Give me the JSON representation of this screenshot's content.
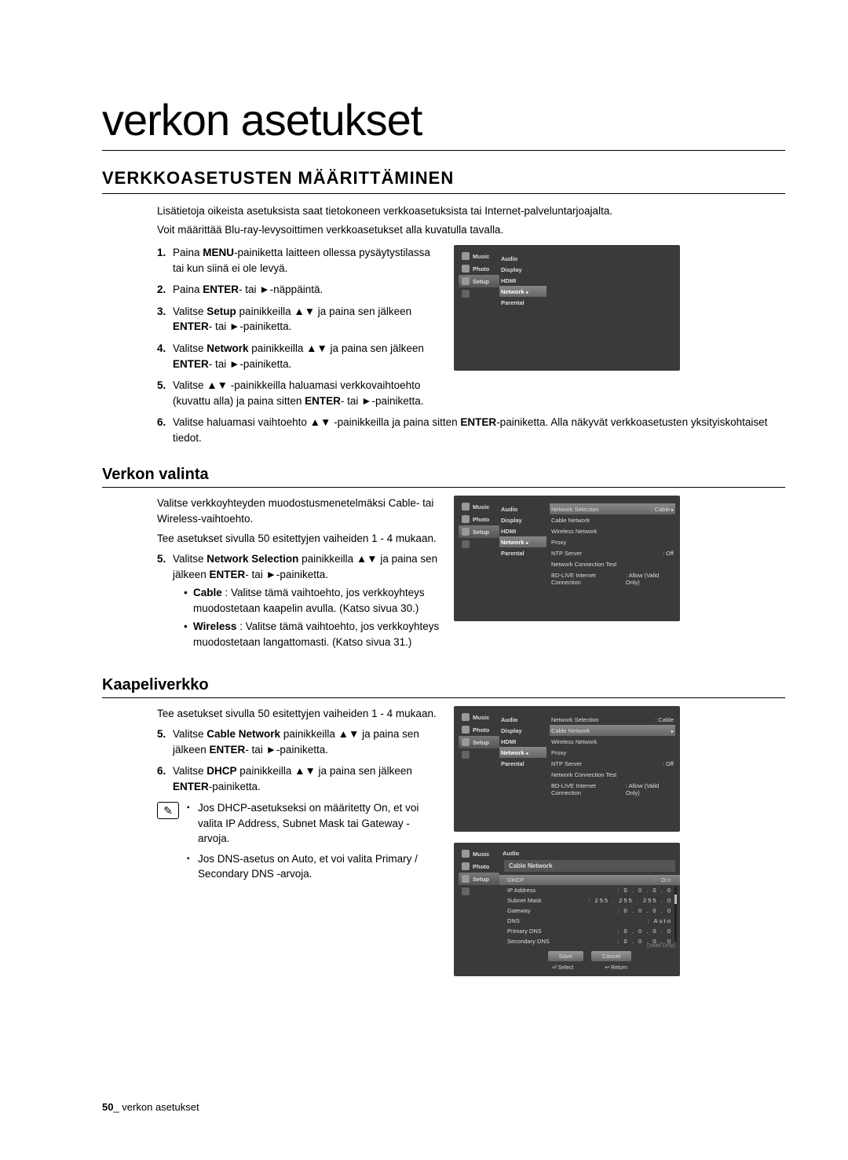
{
  "page": {
    "title": "verkon asetukset",
    "section_heading": "VERKKOASETUSTEN MÄÄRITTÄMINEN",
    "footer_page_num": "50",
    "footer_text": "_ verkon asetukset"
  },
  "intro": [
    "Lisätietoja oikeista asetuksista saat tietokoneen verkkoasetuksista tai Internet-palveluntarjoajalta.",
    "Voit määrittää Blu-ray-levysoittimen verkkoasetukset alla kuvatulla tavalla."
  ],
  "steps_main": [
    {
      "n": "1.",
      "pre": "Paina ",
      "b": "MENU",
      "post": "-painiketta laitteen ollessa pysäytystilassa tai kun siinä ei ole levyä."
    },
    {
      "n": "2.",
      "pre": "Paina ",
      "b": "ENTER",
      "post": "- tai ►-näppäintä."
    },
    {
      "n": "3.",
      "pre": "Valitse ",
      "b": "Setup",
      "post": " painikkeilla ▲▼ ja paina sen jälkeen ",
      "b2": "ENTER",
      "post2": "- tai ►-painiketta."
    },
    {
      "n": "4.",
      "pre": "Valitse ",
      "b": "Network",
      "post": " painikkeilla ▲▼ ja paina sen jälkeen ",
      "b2": "ENTER",
      "post2": "- tai ►-painiketta."
    },
    {
      "n": "5.",
      "pre": "Valitse ▲▼ -painikkeilla haluamasi verkkovaihtoehto (kuvattu alla) ja paina sitten ",
      "b": "ENTER",
      "post": "- tai ►-painiketta."
    },
    {
      "n": "6.",
      "pre": "Valitse haluamasi vaihtoehto ▲▼ -painikkeilla ja paina sitten ",
      "b": "ENTER",
      "post": "-painiketta. Alla näkyvät verkkoasetusten yksityiskohtaiset tiedot."
    }
  ],
  "sub_verkon": {
    "title": "Verkon valinta",
    "para1": "Valitse verkkoyhteyden muodostusmenetelmäksi Cable- tai Wireless-vaihtoehto.",
    "para2": "Tee asetukset sivulla 50 esitettyjen vaiheiden 1 - 4 mukaan.",
    "step5_pre": "Valitse ",
    "step5_b": "Network Selection",
    "step5_post": " painikkeilla ▲▼ ja paina sen jälkeen ",
    "step5_b2": "ENTER",
    "step5_post2": "- tai ►-painiketta.",
    "bullet_cable_b": "Cable",
    "bullet_cable": " : Valitse tämä vaihtoehto, jos verkkoyhteys muodostetaan kaapelin avulla. (Katso sivua 30.)",
    "bullet_wireless_b": "Wireless",
    "bullet_wireless": " : Valitse tämä vaihtoehto, jos verkkoyhteys muodostetaan langattomasti. (Katso sivua 31.)"
  },
  "sub_kaapeli": {
    "title": "Kaapeliverkko",
    "para1": "Tee asetukset sivulla 50 esitettyjen vaiheiden 1 - 4 mukaan.",
    "step5_pre": "Valitse ",
    "step5_b": "Cable Network",
    "step5_post": " painikkeilla ▲▼ ja paina sen jälkeen ",
    "step5_b2": "ENTER",
    "step5_post2": "- tai ►-painiketta.",
    "step6_pre": "Valitse ",
    "step6_b": "DHCP",
    "step6_post": " painikkeilla ▲▼ ja paina sen jälkeen ",
    "step6_b2": "ENTER",
    "step6_post2": "-painiketta.",
    "note1_pre": "Jos DHCP-asetukseksi on määritetty ",
    "note1_b": "On",
    "note1_post": ", et voi valita IP Address, Subnet Mask tai Gateway -arvoja.",
    "note2_pre": "Jos DNS-asetus on ",
    "note2_b": "Auto",
    "note2_post": ", et voi valita Primary / Secondary DNS -arvoja."
  },
  "tv_side": [
    {
      "icon": true,
      "label": "Music"
    },
    {
      "icon": true,
      "label": "Photo"
    },
    {
      "icon": true,
      "label": "Setup",
      "hl": true
    },
    {
      "icon": true,
      "label": "",
      "dim": true
    }
  ],
  "tv_mid": [
    "Audio",
    "Display",
    "HDMI",
    "Network",
    "Parental"
  ],
  "tv2_main": [
    {
      "l": "Network Selection",
      "v": "Cable",
      "hl": true,
      "arr": true
    },
    {
      "l": "Cable Network"
    },
    {
      "l": "Wireless Network"
    },
    {
      "l": "Proxy"
    },
    {
      "l": "NTP Server",
      "v": "Off"
    },
    {
      "l": "Network Connection Test"
    },
    {
      "l": "BD-LIVE Internet Connection",
      "v": "Allow (Valid Only)"
    }
  ],
  "tv3_main": [
    {
      "l": "Network Selection",
      "v": "Cable"
    },
    {
      "l": "Cable Network",
      "hl": true,
      "arr": true
    },
    {
      "l": "Wireless Network"
    },
    {
      "l": "Proxy"
    },
    {
      "l": "NTP Server",
      "v": "Off"
    },
    {
      "l": "Network Connection Test"
    },
    {
      "l": "BD-LIVE Internet Connection",
      "v": "Allow (Valid Only)"
    }
  ],
  "tv4": {
    "header": "Cable Network",
    "rows": [
      {
        "l": "DHCP",
        "v": "On",
        "hl": true
      },
      {
        "l": "IP Address",
        "v": "0 . 0 . 0 . 0"
      },
      {
        "l": "Subnet Mask",
        "v": "255 . 255 . 255 . 0"
      },
      {
        "l": "Gateway",
        "v": "0 . 0 . 0 . 0"
      },
      {
        "l": "DNS",
        "v": "Auto"
      },
      {
        "l": "Primary DNS",
        "v": "0 . 0 . 0 . 0"
      },
      {
        "l": "Secondary DNS",
        "v": "0 . 0 . 0 . 0"
      }
    ],
    "btn_save": "Save",
    "btn_cancel": "Cancel",
    "foot_select": "Select",
    "foot_return": "Return",
    "side_note": "(Valid Only)"
  }
}
